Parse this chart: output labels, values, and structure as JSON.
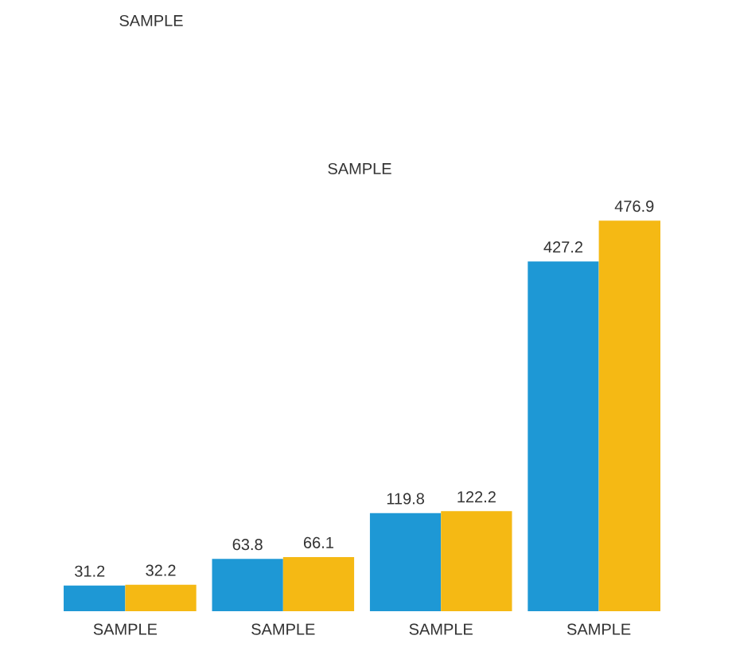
{
  "chart_data": {
    "type": "bar",
    "categories": [
      "SAMPLE",
      "SAMPLE",
      "SAMPLE",
      "SAMPLE"
    ],
    "series": [
      {
        "color": "#1e98d5",
        "values": [
          31.2,
          63.8,
          119.8,
          427.2
        ]
      },
      {
        "color": "#f5b914",
        "values": [
          32.2,
          66.1,
          122.2,
          476.9
        ]
      }
    ],
    "data_labels": true,
    "annotations": [
      "SAMPLE",
      "SAMPLE"
    ]
  }
}
